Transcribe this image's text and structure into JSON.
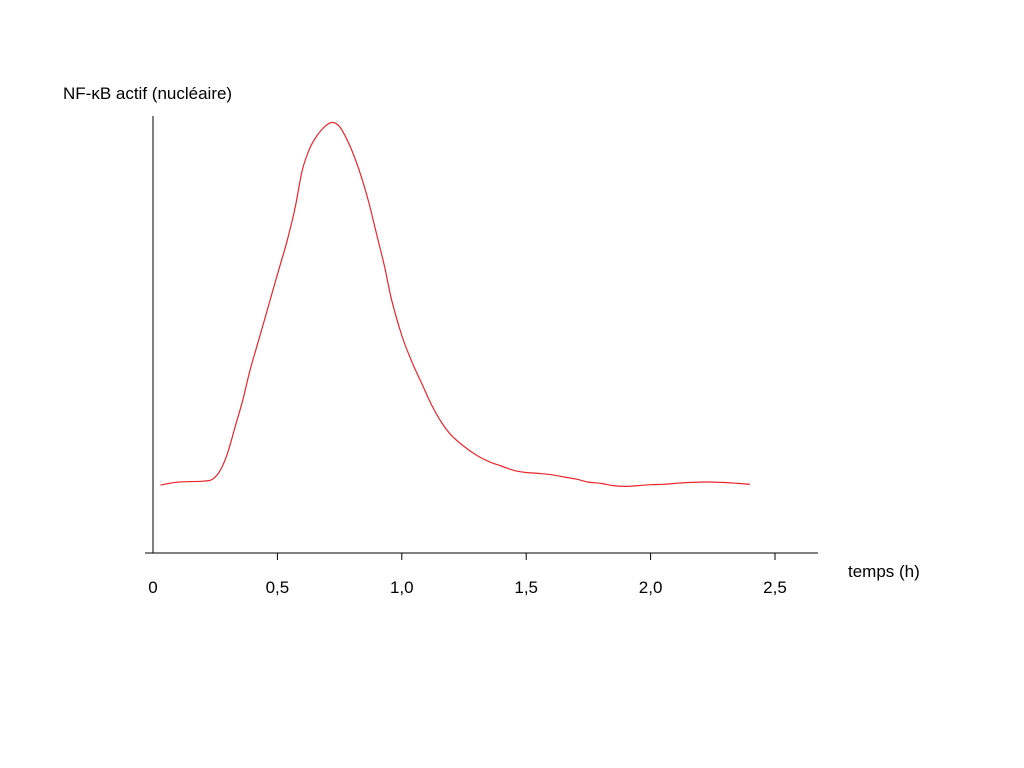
{
  "chart_data": {
    "type": "line",
    "title": "",
    "ylabel": "NF-κB actif (nucléaire)",
    "xlabel": "temps (h)",
    "xlim": [
      0,
      2.5
    ],
    "ylim": [
      0,
      1
    ],
    "grid": false,
    "x_ticks": [
      {
        "value": 0,
        "label": "0"
      },
      {
        "value": 0.5,
        "label": "0,5"
      },
      {
        "value": 1.0,
        "label": "1,0"
      },
      {
        "value": 1.5,
        "label": "1,5"
      },
      {
        "value": 2.0,
        "label": "2,0"
      },
      {
        "value": 2.5,
        "label": "2,5"
      }
    ],
    "line_color": "#e8262c",
    "series": [
      {
        "x": [
          0.03,
          0.1,
          0.2,
          0.24,
          0.27,
          0.3,
          0.33,
          0.36,
          0.39,
          0.42,
          0.45,
          0.48,
          0.51,
          0.54,
          0.57,
          0.6,
          0.63,
          0.66,
          0.69,
          0.72,
          0.75,
          0.78,
          0.81,
          0.84,
          0.87,
          0.9,
          0.93,
          0.96,
          1.0,
          1.04,
          1.08,
          1.12,
          1.16,
          1.2,
          1.25,
          1.3,
          1.35,
          1.4,
          1.45,
          1.5,
          1.55,
          1.6,
          1.65,
          1.7,
          1.75,
          1.8,
          1.85,
          1.9,
          1.95,
          2.0,
          2.05,
          2.1,
          2.15,
          2.2,
          2.25,
          2.3,
          2.35,
          2.4
        ],
        "y": [
          0.156,
          0.163,
          0.165,
          0.17,
          0.19,
          0.23,
          0.29,
          0.35,
          0.42,
          0.48,
          0.54,
          0.6,
          0.66,
          0.72,
          0.79,
          0.88,
          0.93,
          0.96,
          0.98,
          0.99,
          0.98,
          0.95,
          0.91,
          0.86,
          0.8,
          0.73,
          0.66,
          0.58,
          0.5,
          0.44,
          0.39,
          0.34,
          0.3,
          0.27,
          0.245,
          0.225,
          0.21,
          0.2,
          0.19,
          0.185,
          0.183,
          0.18,
          0.175,
          0.17,
          0.163,
          0.16,
          0.155,
          0.153,
          0.155,
          0.157,
          0.158,
          0.16,
          0.162,
          0.163,
          0.163,
          0.162,
          0.16,
          0.158
        ]
      }
    ]
  }
}
